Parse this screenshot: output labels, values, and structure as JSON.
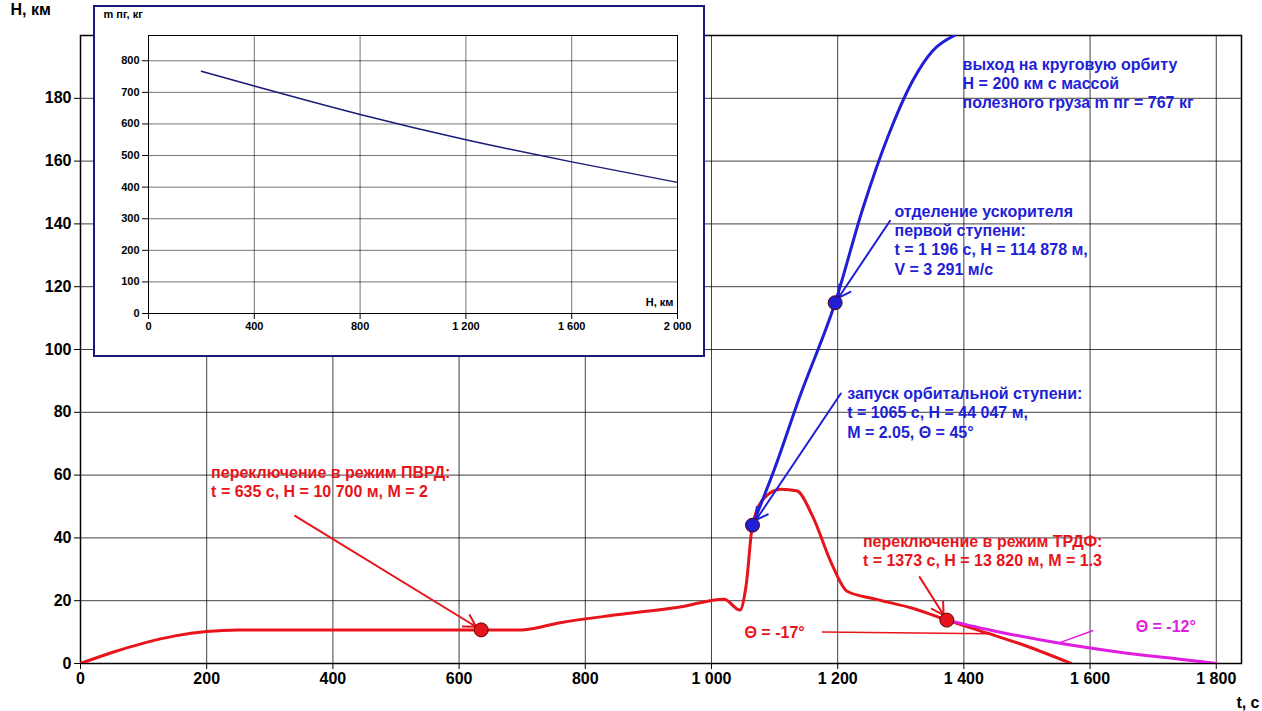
{
  "chart_data": [
    {
      "type": "line",
      "x_label": "t, с",
      "y_label": "H, км",
      "xlim": [
        0,
        1840
      ],
      "ylim": [
        0,
        200
      ],
      "xticks": [
        0,
        200,
        400,
        600,
        800,
        {
          "value": 1000,
          "label": "1 000"
        },
        {
          "value": 1200,
          "label": "1 200"
        },
        {
          "value": 1400,
          "label": "1 400"
        },
        {
          "value": 1600,
          "label": "1 600"
        },
        {
          "value": 1800,
          "label": "1 800"
        }
      ],
      "yticks": [
        0,
        20,
        40,
        60,
        80,
        100,
        120,
        140,
        160,
        180
      ],
      "grid": true,
      "series": [
        {
          "color": "#e8141b",
          "x": [
            0,
            50,
            100,
            150,
            200,
            250,
            635,
            700,
            760,
            850,
            950,
            1020,
            1045,
            1055,
            1065,
            1085,
            1110,
            1135,
            1160,
            1190,
            1215,
            1260,
            1320,
            1373,
            1440,
            1500,
            1570
          ],
          "values": [
            0,
            3.5,
            6.5,
            8.8,
            10.2,
            10.7,
            10.7,
            10.7,
            13,
            15.5,
            18,
            20.5,
            17,
            25,
            44.047,
            53,
            55.5,
            55,
            47,
            32,
            23,
            20.5,
            17.5,
            13.82,
            9.5,
            5.5,
            0
          ]
        },
        {
          "color": "#1f1fd6",
          "x": [
            1065,
            1100,
            1140,
            1196,
            1240,
            1280,
            1320,
            1350,
            1385
          ],
          "values": [
            44.047,
            62,
            85,
            114.878,
            145,
            168,
            186,
            195,
            200
          ]
        },
        {
          "color": "#e01ee0",
          "x": [
            1373,
            1450,
            1550,
            1650,
            1750,
            1800
          ],
          "values": [
            13.82,
            10.3,
            6.5,
            3.5,
            1.2,
            0
          ]
        }
      ],
      "markers": [
        {
          "x": 635,
          "y": 10.7,
          "color": "#e8141b"
        },
        {
          "x": 1373,
          "y": 13.82,
          "color": "#e8141b"
        },
        {
          "x": 1065,
          "y": 44.047,
          "color": "#1f1fd6"
        },
        {
          "x": 1196,
          "y": 114.878,
          "color": "#1f1fd6"
        }
      ],
      "annotations": [
        {
          "text": [
            "переключение в режим ПВРД:",
            "t = 635 с, H = 10 700 м, M = 2"
          ],
          "color": "#e8141b"
        },
        {
          "text": [
            "запуск орбитальной ступени:",
            "t = 1065 с, H = 44 047 м,",
            "M = 2.05, Θ = 45°"
          ],
          "color": "#1f1fd6"
        },
        {
          "text": [
            "отделение ускорителя",
            "первой ступени:",
            "t = 1 196 с, H = 114 878 м,",
            "V = 3 291 м/с"
          ],
          "color": "#1f1fd6"
        },
        {
          "text": [
            "выход на круговую орбиту",
            "H = 200 км с массой",
            "полезного груза m пг = 767 кг"
          ],
          "color": "#1f1fd6"
        },
        {
          "text": [
            "переключение в режим ТРДФ:",
            "t = 1373 с, H = 13 820 м, M = 1.3"
          ],
          "color": "#e8141b"
        },
        {
          "text": [
            "Θ = -17°"
          ],
          "color": "#e8141b"
        },
        {
          "text": [
            "Θ = -12°"
          ],
          "color": "#e01ee0"
        }
      ]
    },
    {
      "type": "line",
      "x_label": "H, км",
      "y_label": "m пг, кг",
      "xlim": [
        0,
        2000
      ],
      "ylim": [
        0,
        880
      ],
      "xticks": [
        0,
        400,
        800,
        {
          "value": 1200,
          "label": "1 200"
        },
        {
          "value": 1600,
          "label": "1 600"
        },
        {
          "value": 2000,
          "label": "2 000"
        }
      ],
      "yticks": [
        0,
        100,
        200,
        300,
        400,
        500,
        600,
        700,
        800
      ],
      "grid": true,
      "series": [
        {
          "color": "#1a1a7a",
          "x": [
            200,
            400,
            800,
            1200,
            1600,
            2000
          ],
          "values": [
            767,
            720,
            630,
            550,
            480,
            415
          ]
        }
      ]
    }
  ]
}
